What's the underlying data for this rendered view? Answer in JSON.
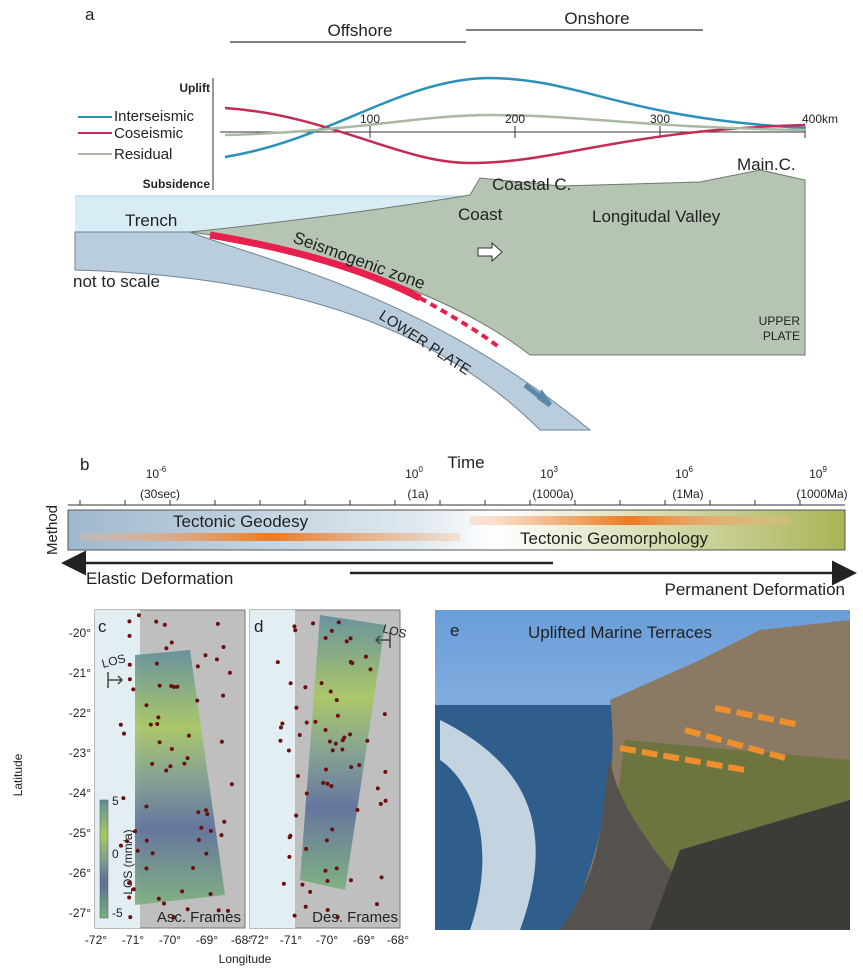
{
  "panel_a": {
    "label": "a",
    "offshore": "Offshore",
    "onshore": "Onshore",
    "uplift": "Uplift",
    "subsidence": "Subsidence",
    "legend": [
      "Interseismic",
      "Coseismic",
      "Residual"
    ],
    "distance_ticks": [
      "100",
      "200",
      "300",
      "400km"
    ],
    "annotations": {
      "coastal_cordillera": "Coastal C.",
      "main_cordillera": "Main.C.",
      "trench": "Trench",
      "coast": "Coast",
      "valley": "Longitudal Valley",
      "seismogenic": "Seismogenic zone",
      "scale": "not to scale",
      "lower_plate": "LOWER PLATE",
      "upper_plate": [
        "UPPER",
        "PLATE"
      ]
    }
  },
  "panel_b": {
    "label": "b",
    "axis_title": "Time",
    "ticks": [
      {
        "base": "10",
        "exponent": "-6",
        "label": "(30sec)"
      },
      {
        "base": "10",
        "exponent": "0",
        "label": "(1a)"
      },
      {
        "base": "10",
        "exponent": "3",
        "label": "(1000a)"
      },
      {
        "base": "10",
        "exponent": "6",
        "label": "(1Ma)"
      },
      {
        "base": "10",
        "exponent": "9",
        "label": "(1000Ma)"
      }
    ],
    "method": "Method",
    "geodesy": "Tectonic Geodesy",
    "geomorphology": "Tectonic Geomorphology",
    "elastic": "Elastic Deformation",
    "permanent": "Permanent Deformation"
  },
  "maps": {
    "latitude_ticks": [
      "-20°",
      "-21°",
      "-22°",
      "-23°",
      "-24°",
      "-25°",
      "-26°",
      "-27°"
    ],
    "x_title": "Longitude",
    "y_title": "Latitude",
    "colorbar": {
      "title": "LOS (mm/a)",
      "ticks": [
        "5",
        "0",
        "-5"
      ]
    }
  },
  "panel_c": {
    "label": "c",
    "los": "LOS",
    "frames": "Asc. Frames",
    "longitude_ticks": [
      "-72°",
      "-71°",
      "-70°",
      "-69°",
      "-68°"
    ]
  },
  "panel_d": {
    "label": "d",
    "los": "LOS",
    "frames": "Des. Frames",
    "longitude_ticks": [
      "-72°",
      "-71°",
      "-70°",
      "-69°",
      "-68°"
    ]
  },
  "panel_e": {
    "label": "e",
    "title": "Uplifted Marine Terraces"
  }
}
